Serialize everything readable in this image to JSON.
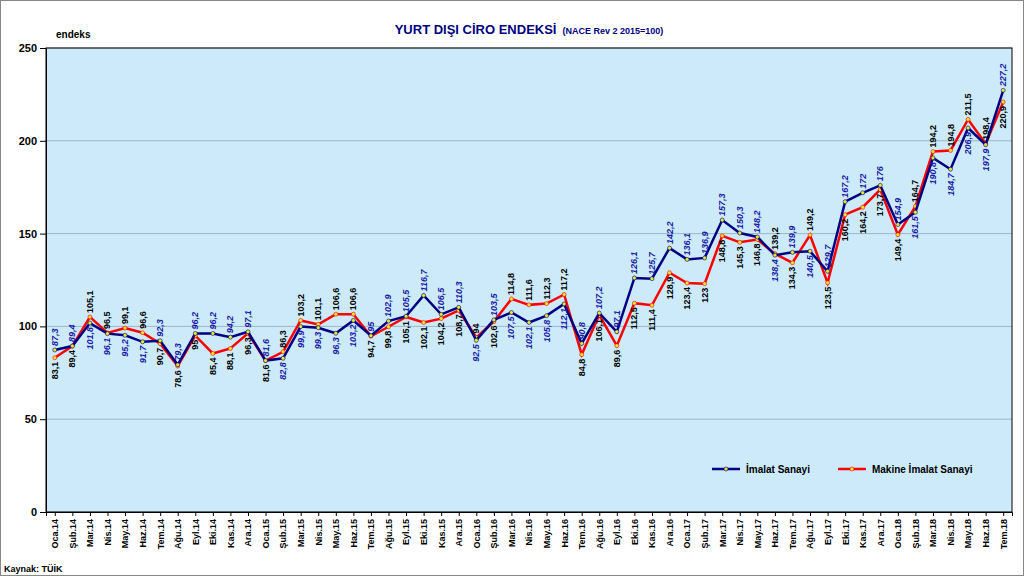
{
  "chart_data": {
    "type": "line",
    "title": "YURT DIŞI CİRO ENDEKSİ",
    "subtitle": "(NACE Rev 2 2015=100)",
    "y_label": "endeks",
    "source": "Kaynak: TÜİK",
    "categories": [
      "Oca.14",
      "Şub.14",
      "Mar.14",
      "Nis.14",
      "May.14",
      "Haz.14",
      "Tem.14",
      "Ağu.14",
      "Eyl.14",
      "Eki.14",
      "Kas.14",
      "Ara.14",
      "Oca.15",
      "Şub.15",
      "Mar.15",
      "Nis.15",
      "May.15",
      "Haz.15",
      "Tem.15",
      "Ağu.15",
      "Eyl.15",
      "Eki.15",
      "Kas.15",
      "Ara.15",
      "Oca.16",
      "Şub.16",
      "Mar.16",
      "Nis.16",
      "May.16",
      "Haz.16",
      "Tem.16",
      "Ağu.16",
      "Eyl.16",
      "Eki.16",
      "Kas.16",
      "Ara.16",
      "Oca.17",
      "Şub.17",
      "Mar.17",
      "Nis.17",
      "May.17",
      "Haz.17",
      "Tem.17",
      "Ağu.17",
      "Eyl.17",
      "Eki.17",
      "Kas.17",
      "Ara.17",
      "Oca.18",
      "Şub.18",
      "Mar.18",
      "Nis.18",
      "May.18",
      "Haz.18",
      "Tem.18"
    ],
    "series": [
      {
        "name": "İmalat Sanayi",
        "color": "#000080",
        "marker": "circle",
        "values": [
          87.3,
          89.4,
          101.8,
          96.1,
          95.2,
          91.7,
          92.3,
          79.3,
          96.2,
          96.2,
          94.2,
          97.1,
          81.6,
          82.8,
          99.9,
          99.3,
          96.3,
          103.2,
          95,
          102.9,
          105.5,
          116.7,
          106.5,
          110.3,
          92.5,
          103.5,
          107.5,
          102.1,
          105.8,
          112.1,
          90.8,
          107.2,
          97.1,
          126.1,
          125.7,
          142.2,
          136.1,
          136.9,
          157.3,
          150.3,
          148.2,
          138.4,
          139.9,
          140.5,
          129.7,
          167.2,
          172,
          176,
          154.9,
          161.5,
          190.8,
          184.7,
          206.9,
          197.9,
          227.2
        ],
        "value_labels": [
          "87,3",
          "89,4",
          "101,8",
          "96,1",
          "95,2",
          "91,7",
          "92,3",
          "79,3",
          "96,2",
          "96,2",
          "94,2",
          "97,1",
          "81,6",
          "82,8",
          "99,9",
          "99,3",
          "96,3",
          "103,2",
          "95",
          "102,9",
          "105,5",
          "116,7",
          "106,5",
          "110,3",
          "92,5",
          "103,5",
          "107,5",
          "102,1",
          "105,8",
          "112,1",
          "90,8",
          "107,2",
          "97,1",
          "126,1",
          "125,7",
          "142,2",
          "136,1",
          "136,9",
          "157,3",
          "150,3",
          "148,2",
          "138,4",
          "139,9",
          "140,5",
          "129,7",
          "167,2",
          "172",
          "176",
          "154,9",
          "161,5",
          "190,8",
          "184,7",
          "206,9",
          "197,9",
          "227,2"
        ]
      },
      {
        "name": "Makine İmalat Sanayi",
        "color": "#ff0000",
        "marker": "circle",
        "values": [
          83.1,
          89.4,
          105.1,
          96.5,
          99.1,
          96.6,
          90.7,
          78.6,
          95,
          85.4,
          88.1,
          96.3,
          81.6,
          86.3,
          103.2,
          101.1,
          106.6,
          106.6,
          94.7,
          99.8,
          105.1,
          102.1,
          104.2,
          108.7,
          94,
          102.6,
          114.8,
          111.6,
          112.3,
          117.2,
          84.8,
          106.1,
          89.6,
          112.5,
          111.4,
          128.9,
          123.4,
          123,
          148.8,
          145.3,
          146.8,
          139.2,
          134.3,
          149.2,
          123.5,
          160.2,
          164.2,
          173.7,
          149.4,
          164.7,
          194.2,
          194.8,
          211.5,
          198.4,
          220.9
        ],
        "value_labels": [
          "83,1",
          "89,4",
          "105,1",
          "96,5",
          "99,1",
          "96,6",
          "90,7",
          "78,6",
          "95",
          "85,4",
          "88,1",
          "96,3",
          "81,6",
          "86,3",
          "103,2",
          "101,1",
          "106,6",
          "106,6",
          "94,7",
          "99,8",
          "105,1",
          "102,1",
          "104,2",
          "108,7",
          "94",
          "102,6",
          "114,8",
          "111,6",
          "112,3",
          "117,2",
          "84,8",
          "106,1",
          "89,6",
          "112,5",
          "111,4",
          "128,9",
          "123,4",
          "123",
          "148,8",
          "145,3",
          "146,8",
          "139,2",
          "134,3",
          "149,2",
          "123,5",
          "160,2",
          "164,2",
          "173,7",
          "149,4",
          "164,7",
          "194,2",
          "194,8",
          "211,5",
          "198,4",
          "220,9"
        ]
      }
    ],
    "ylim": [
      0,
      250
    ],
    "yticks": [
      0,
      50,
      100,
      150,
      200,
      250
    ],
    "grid": true,
    "legend": "lower right",
    "data_labels": true
  }
}
